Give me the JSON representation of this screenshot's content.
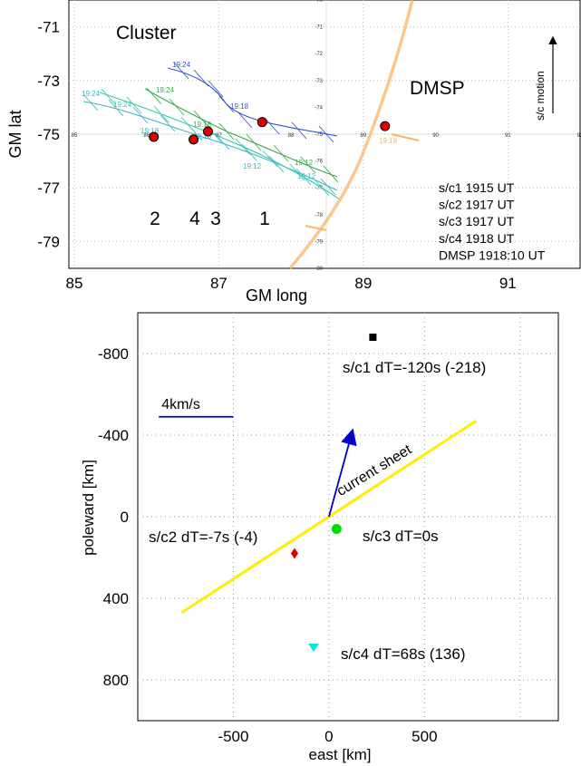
{
  "top": {
    "chart_data": {
      "type": "scatter",
      "xlabel": "GM long",
      "ylabel": "GM lat",
      "xlim": [
        85,
        92
      ],
      "ylim": [
        -80,
        -70
      ],
      "x_ticks": [
        "85",
        "87",
        "89",
        "91"
      ],
      "y_ticks": [
        "-71",
        "-73",
        "-75",
        "-77",
        "-79"
      ],
      "labels": {
        "cluster": "Cluster",
        "dmsp": "DMSP",
        "motion": "s/c motion"
      },
      "sc_numbers": [
        "2",
        "4",
        "3",
        "1"
      ],
      "legend_lines": [
        "s/c1 1915 UT",
        "s/c2 1917 UT",
        "s/c3 1917 UT",
        "s/c4 1918 UT",
        "DMSP 1918:10 UT"
      ],
      "inner_lat_ticks": [
        "-70",
        "-71",
        "-72",
        "-73",
        "-74",
        "-75",
        "-76",
        "-77",
        "-78",
        "-79",
        "-80"
      ],
      "inner_long_ticks": [
        "85",
        "86",
        "87",
        "88",
        "89",
        "90",
        "91",
        "92"
      ],
      "track_time_labels": [
        "19:24",
        "19:24",
        "19:24",
        "19:24",
        "19:18",
        "19:18",
        "19:18",
        "19:18",
        "19:12",
        "19:12",
        "19:12",
        "19:18"
      ],
      "points": [
        {
          "name": "s/c2",
          "long": 86.1,
          "lat": -75.1,
          "color": "#e00000"
        },
        {
          "name": "s/c4",
          "long": 86.65,
          "lat": -75.2,
          "color": "#e00000"
        },
        {
          "name": "s/c3",
          "long": 86.85,
          "lat": -74.9,
          "color": "#e00000"
        },
        {
          "name": "s/c1",
          "long": 87.6,
          "lat": -74.55,
          "color": "#e00000"
        },
        {
          "name": "DMSP",
          "long": 89.3,
          "lat": -74.7,
          "color": "#e00000"
        }
      ]
    }
  },
  "bottom": {
    "chart_data": {
      "type": "scatter",
      "xlabel": "east [km]",
      "ylabel": "poleward [km]",
      "xlim": [
        -1000,
        1200
      ],
      "ylim": [
        1000,
        -1000
      ],
      "x_ticks": [
        "-500",
        "0",
        "500"
      ],
      "y_ticks": [
        "-800",
        "-400",
        "0",
        "400",
        "800"
      ],
      "scale_label": "4km/s",
      "sheet_label": "current sheet",
      "points": [
        {
          "name": "s/c1",
          "x": 230,
          "y": -880,
          "marker": "square",
          "color": "#000000",
          "label": "s/c1 dT=-120s (-218)"
        },
        {
          "name": "s/c2",
          "x": -180,
          "y": 180,
          "marker": "diamond",
          "color": "#e00000",
          "label": "s/c2 dT=-7s (-4)"
        },
        {
          "name": "s/c3",
          "x": 40,
          "y": 60,
          "marker": "circle",
          "color": "#00dd00",
          "label": "s/c3 dT=0s"
        },
        {
          "name": "s/c4",
          "x": -80,
          "y": 640,
          "marker": "triangle",
          "color": "#00e5e5",
          "label": "s/c4 dT=68s (136)"
        }
      ],
      "current_sheet": [
        [
          -770,
          470
        ],
        [
          770,
          -470
        ]
      ],
      "velocity_arrow": [
        [
          0,
          0
        ],
        [
          120,
          -410
        ]
      ],
      "scale_bar": [
        [
          -890,
          -490
        ],
        [
          -500,
          -490
        ]
      ]
    }
  }
}
